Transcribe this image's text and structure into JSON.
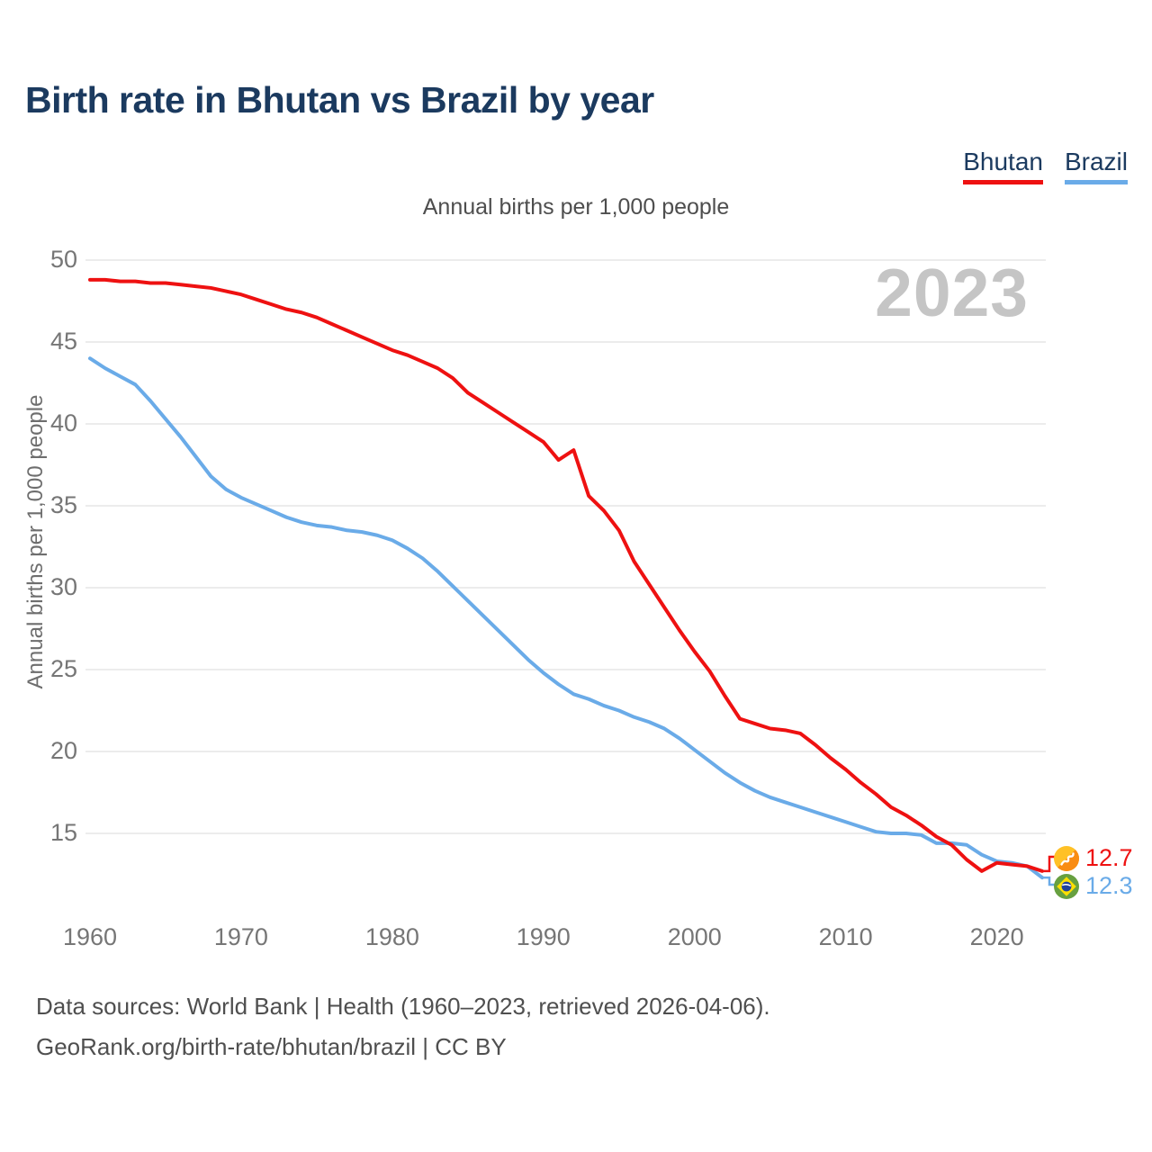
{
  "header": {
    "title": "Birth rate in Bhutan vs Brazil by year"
  },
  "legend": {
    "items": [
      {
        "label": "Bhutan",
        "color": "#ee1111"
      },
      {
        "label": "Brazil",
        "color": "#6aabe8"
      }
    ]
  },
  "watermark": "2023",
  "footer": {
    "line1": "Data sources: World Bank | Health (1960–2023, retrieved 2026-04-06).",
    "line2": "GeoRank.org/birth-rate/bhutan/brazil | CC BY"
  },
  "chart_data": {
    "type": "line",
    "title": "Birth rate in Bhutan vs Brazil by year",
    "subtitle": "Annual births per 1,000 people",
    "xlabel": "",
    "ylabel": "Annual births per 1,000 people",
    "x_range": [
      1960,
      2023
    ],
    "ylim": [
      12,
      50
    ],
    "y_ticks": [
      15,
      20,
      25,
      30,
      35,
      40,
      45,
      50
    ],
    "x_ticks": [
      1960,
      1970,
      1980,
      1990,
      2000,
      2010,
      2020
    ],
    "grid": true,
    "legend_position": "top-right",
    "grid_color": "#ececec",
    "years": [
      1960,
      1961,
      1962,
      1963,
      1964,
      1965,
      1966,
      1967,
      1968,
      1969,
      1970,
      1971,
      1972,
      1973,
      1974,
      1975,
      1976,
      1977,
      1978,
      1979,
      1980,
      1981,
      1982,
      1983,
      1984,
      1985,
      1986,
      1987,
      1988,
      1989,
      1990,
      1991,
      1992,
      1993,
      1994,
      1995,
      1996,
      1997,
      1998,
      1999,
      2000,
      2001,
      2002,
      2003,
      2004,
      2005,
      2006,
      2007,
      2008,
      2009,
      2010,
      2011,
      2012,
      2013,
      2014,
      2015,
      2016,
      2017,
      2018,
      2019,
      2020,
      2021,
      2022,
      2023
    ],
    "series": [
      {
        "name": "Bhutan",
        "color": "#ee1111",
        "end_label": "12.7",
        "values": [
          48.8,
          48.8,
          48.7,
          48.7,
          48.6,
          48.6,
          48.5,
          48.4,
          48.3,
          48.1,
          47.9,
          47.6,
          47.3,
          47.0,
          46.8,
          46.5,
          46.1,
          45.7,
          45.3,
          44.9,
          44.5,
          44.2,
          43.8,
          43.4,
          42.8,
          41.9,
          41.3,
          40.7,
          40.1,
          39.5,
          38.9,
          37.8,
          38.4,
          35.6,
          34.7,
          33.5,
          31.6,
          30.2,
          28.8,
          27.4,
          26.1,
          24.9,
          23.4,
          22.0,
          21.7,
          21.4,
          21.3,
          21.1,
          20.4,
          19.6,
          18.9,
          18.1,
          17.4,
          16.6,
          16.1,
          15.5,
          14.8,
          14.3,
          13.4,
          12.7,
          13.2,
          13.1,
          13.0,
          12.7
        ]
      },
      {
        "name": "Brazil",
        "color": "#6aabe8",
        "end_label": "12.3",
        "values": [
          44.0,
          43.4,
          42.9,
          42.4,
          41.4,
          40.3,
          39.2,
          38.0,
          36.8,
          36.0,
          35.5,
          35.1,
          34.7,
          34.3,
          34.0,
          33.8,
          33.7,
          33.5,
          33.4,
          33.2,
          32.9,
          32.4,
          31.8,
          31.0,
          30.1,
          29.2,
          28.3,
          27.4,
          26.5,
          25.6,
          24.8,
          24.1,
          23.5,
          23.2,
          22.8,
          22.5,
          22.1,
          21.8,
          21.4,
          20.8,
          20.1,
          19.4,
          18.7,
          18.1,
          17.6,
          17.2,
          16.9,
          16.6,
          16.3,
          16.0,
          15.7,
          15.4,
          15.1,
          15.0,
          15.0,
          14.9,
          14.4,
          14.4,
          14.3,
          13.7,
          13.3,
          13.2,
          13.0,
          12.3
        ]
      }
    ]
  }
}
